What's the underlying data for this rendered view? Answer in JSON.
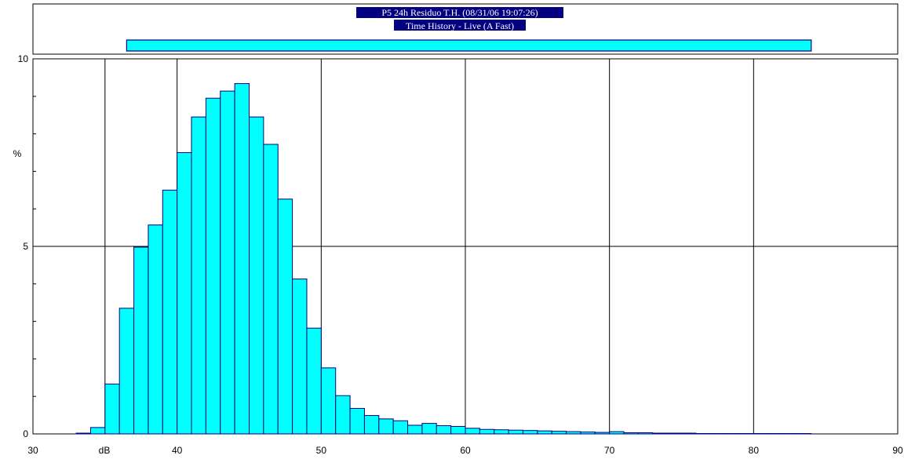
{
  "header": {
    "title_line1": "P5 24h Residuo T.H. (08/31/06 19:07:26)",
    "title_line2": "Time History - Live (A Fast)",
    "range_bar_from": 36.5,
    "range_bar_to": 84
  },
  "colors": {
    "bar_fill": "#00ffff",
    "bar_stroke": "#000080",
    "title_bg": "#000080",
    "grid": "#000000",
    "range_bar_fill": "#00ffff",
    "range_bar_stroke": "#000080"
  },
  "chart_data": {
    "type": "bar",
    "title": "P5 24h Residuo T.H. (08/31/06 19:07:26)",
    "subtitle": "Time History - Live (A Fast)",
    "xlabel": "dB",
    "ylabel": "%",
    "xlim": [
      30,
      90
    ],
    "ylim": [
      0,
      10
    ],
    "x_ticks": [
      "30",
      "40",
      "50",
      "60",
      "70",
      "80",
      "90"
    ],
    "y_ticks": [
      "0",
      "5",
      "10"
    ],
    "grid": true,
    "bin_width": 1,
    "bin_starts": [
      33,
      34,
      35,
      36,
      37,
      38,
      39,
      40,
      41,
      42,
      43,
      44,
      45,
      46,
      47,
      48,
      49,
      50,
      51,
      52,
      53,
      54,
      55,
      56,
      57,
      58,
      59,
      60,
      61,
      62,
      63,
      64,
      65,
      66,
      67,
      68,
      69,
      70,
      71,
      72,
      73,
      74,
      75,
      76,
      77,
      78,
      79,
      80,
      81,
      82,
      83
    ],
    "values": [
      0.02,
      0.17,
      1.33,
      3.35,
      4.98,
      5.57,
      6.5,
      7.5,
      8.45,
      8.95,
      9.14,
      9.34,
      8.45,
      7.72,
      6.26,
      4.13,
      2.82,
      1.76,
      1.02,
      0.68,
      0.49,
      0.4,
      0.35,
      0.23,
      0.28,
      0.22,
      0.2,
      0.15,
      0.12,
      0.11,
      0.1,
      0.09,
      0.08,
      0.07,
      0.06,
      0.05,
      0.04,
      0.06,
      0.03,
      0.03,
      0.02,
      0.02,
      0.02,
      0.01,
      0.01,
      0.01,
      0.01,
      0.01,
      0.01,
      0.01,
      0.01
    ]
  }
}
